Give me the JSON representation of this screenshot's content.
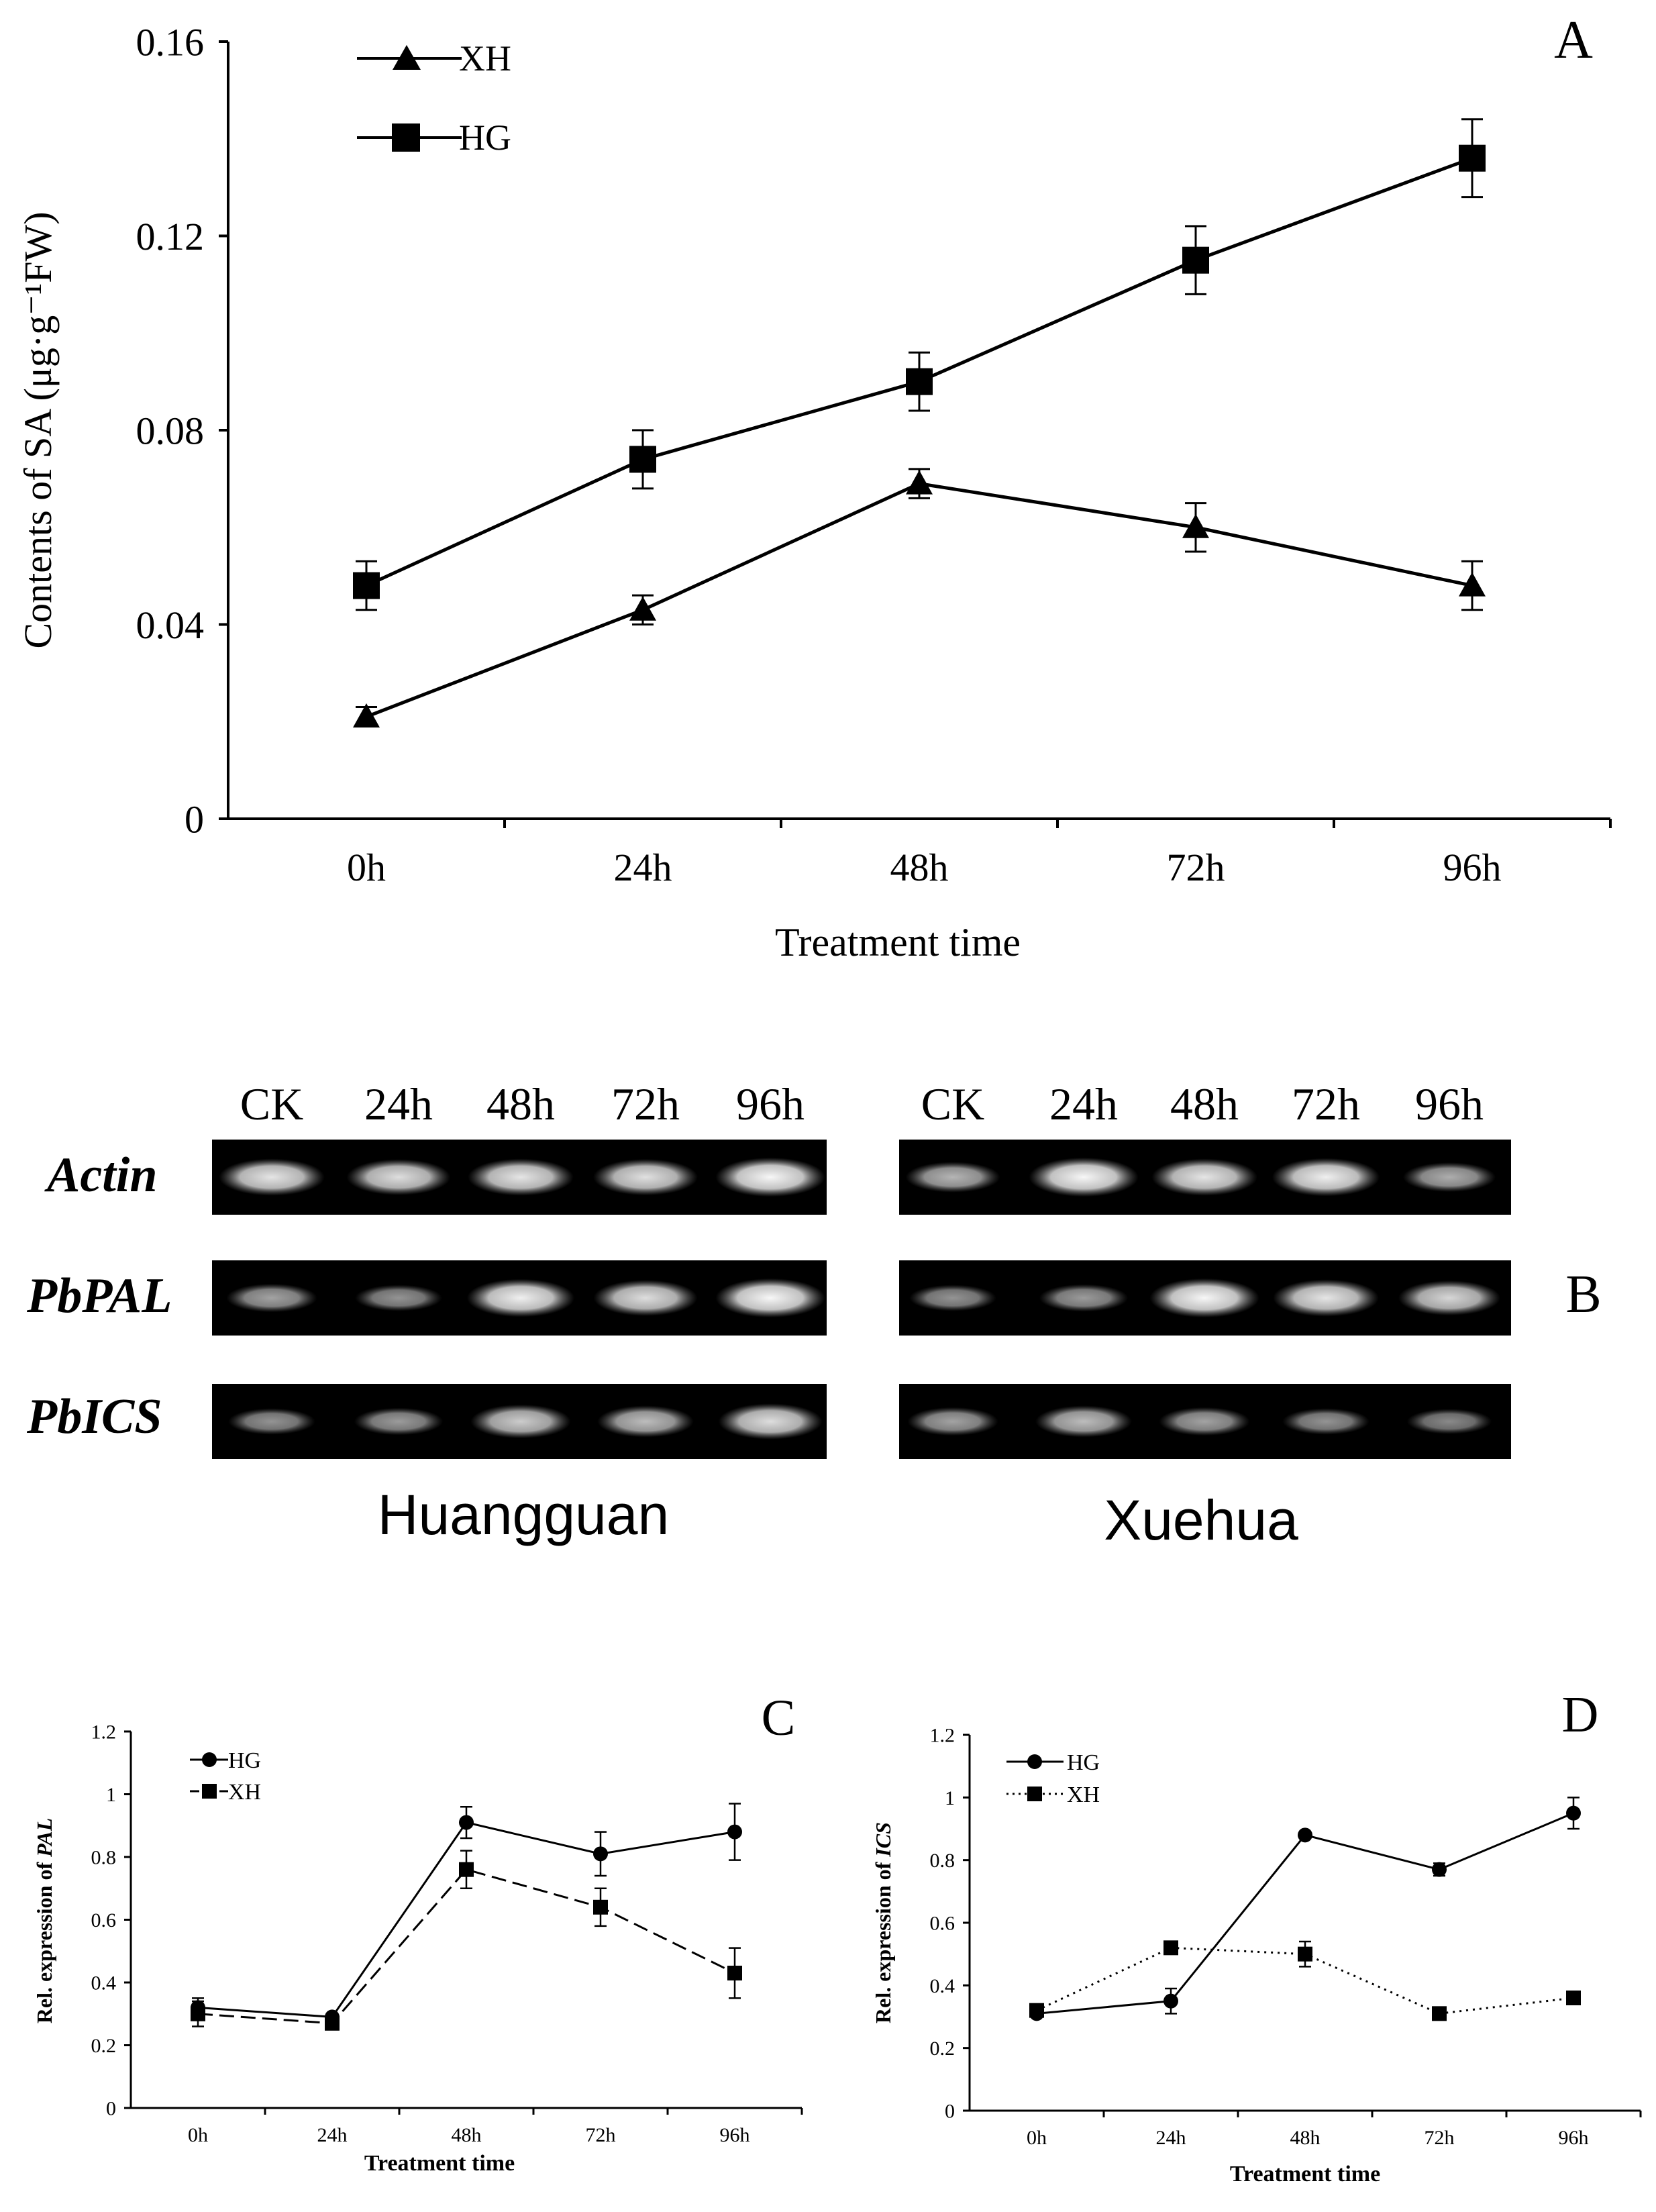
{
  "chart_data": [
    {
      "panel": "A",
      "type": "line",
      "panel_letter": "A",
      "ylabel": "Contents of SA (μg·g⁻¹FW)",
      "xlabel": "Treatment time",
      "categories": [
        "0h",
        "24h",
        "48h",
        "72h",
        "96h"
      ],
      "yticks": [
        "0",
        "0.04",
        "0.08",
        "0.12",
        "0.16"
      ],
      "ylim": [
        0,
        0.16
      ],
      "legend_position": "top-left",
      "grid": false,
      "series": [
        {
          "name": "XH",
          "marker": "triangle",
          "style": "solid",
          "values": [
            0.021,
            0.043,
            0.069,
            0.06,
            0.048
          ],
          "errors": [
            0.002,
            0.003,
            0.003,
            0.005,
            0.005
          ]
        },
        {
          "name": "HG",
          "marker": "square",
          "style": "solid",
          "values": [
            0.048,
            0.074,
            0.09,
            0.115,
            0.136
          ],
          "errors": [
            0.005,
            0.006,
            0.006,
            0.007,
            0.008
          ]
        }
      ]
    },
    {
      "panel": "C",
      "type": "line",
      "panel_letter": "C",
      "ylabel_prefix": "Rel. expression of ",
      "ylabel_gene": "PAL",
      "xlabel": "Treatment time",
      "categories": [
        "0h",
        "24h",
        "48h",
        "72h",
        "96h"
      ],
      "yticks": [
        "0",
        "0.2",
        "0.4",
        "0.6",
        "0.8",
        "1",
        "1.2"
      ],
      "ylim": [
        0,
        1.2
      ],
      "legend_position": "top-left",
      "grid": false,
      "series": [
        {
          "name": "HG",
          "marker": "circle",
          "style": "solid",
          "values": [
            0.32,
            0.29,
            0.91,
            0.81,
            0.88
          ],
          "errors": [
            0.03,
            0.01,
            0.05,
            0.07,
            0.09
          ]
        },
        {
          "name": "XH",
          "marker": "square",
          "style": "dashed",
          "values": [
            0.3,
            0.27,
            0.76,
            0.64,
            0.43
          ],
          "errors": [
            0.04,
            0.01,
            0.06,
            0.06,
            0.08
          ]
        }
      ]
    },
    {
      "panel": "D",
      "type": "line",
      "panel_letter": "D",
      "ylabel_prefix": "Rel. expression of ",
      "ylabel_gene": "ICS",
      "xlabel": "Treatment time",
      "categories": [
        "0h",
        "24h",
        "48h",
        "72h",
        "96h"
      ],
      "yticks": [
        "0",
        "0.2",
        "0.4",
        "0.6",
        "0.8",
        "1",
        "1.2"
      ],
      "ylim": [
        0,
        1.2
      ],
      "legend_position": "top-left",
      "grid": false,
      "series": [
        {
          "name": "HG",
          "marker": "circle",
          "style": "solid",
          "values": [
            0.31,
            0.35,
            0.88,
            0.77,
            0.95
          ],
          "errors": [
            0.01,
            0.04,
            0.01,
            0.02,
            0.05
          ]
        },
        {
          "name": "XH",
          "marker": "square",
          "style": "dotted",
          "values": [
            0.32,
            0.52,
            0.5,
            0.31,
            0.36
          ],
          "errors": [
            0.01,
            0.02,
            0.04,
            0.01,
            0.01
          ]
        }
      ]
    }
  ],
  "gel": {
    "panel_letter": "B",
    "genes": [
      "Actin",
      "PbPAL",
      "PbICS"
    ],
    "cultivars": [
      {
        "name": "Huangguan",
        "lanes": [
          "CK",
          "24h",
          "48h",
          "72h",
          "96h"
        ],
        "bands": {
          "Actin": [
            0.85,
            0.8,
            0.85,
            0.82,
            0.95
          ],
          "PbPAL": [
            0.45,
            0.35,
            0.9,
            0.8,
            0.95
          ],
          "PbICS": [
            0.35,
            0.4,
            0.7,
            0.6,
            0.8
          ]
        }
      },
      {
        "name": "Xuehua",
        "lanes": [
          "CK",
          "24h",
          "48h",
          "72h",
          "96h"
        ],
        "bands": {
          "Actin": [
            0.55,
            0.95,
            0.85,
            0.9,
            0.5
          ],
          "PbPAL": [
            0.35,
            0.4,
            0.95,
            0.85,
            0.75
          ],
          "PbICS": [
            0.45,
            0.6,
            0.45,
            0.35,
            0.3
          ]
        }
      }
    ]
  },
  "colors": {
    "ink": "#000000",
    "background": "#ffffff",
    "gel_bg": "#000000",
    "band": "#ffffff"
  }
}
